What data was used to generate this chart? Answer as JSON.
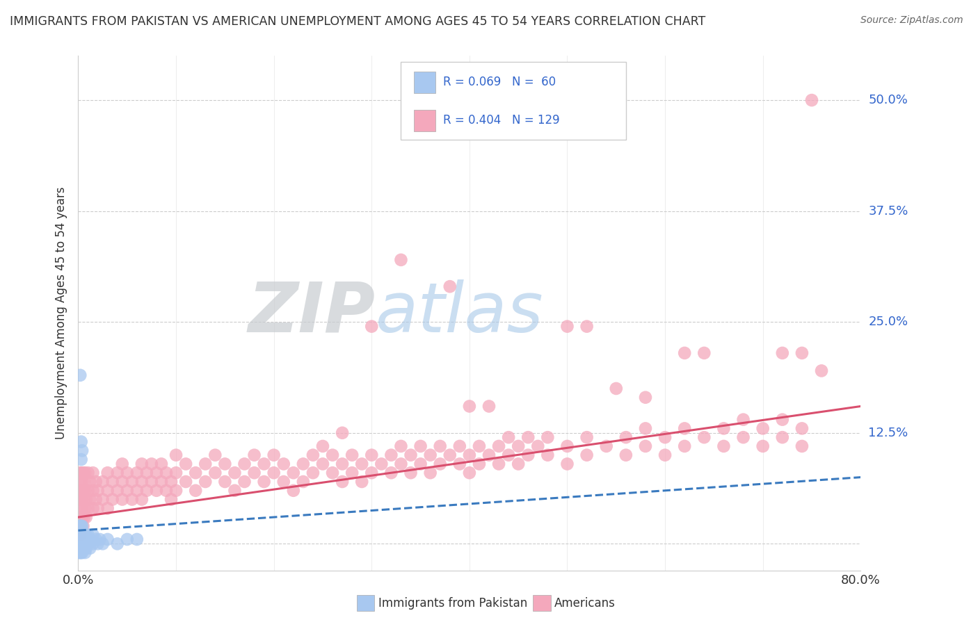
{
  "title": "IMMIGRANTS FROM PAKISTAN VS AMERICAN UNEMPLOYMENT AMONG AGES 45 TO 54 YEARS CORRELATION CHART",
  "source": "Source: ZipAtlas.com",
  "ylabel": "Unemployment Among Ages 45 to 54 years",
  "xlim": [
    0.0,
    0.8
  ],
  "ylim": [
    -0.03,
    0.55
  ],
  "xticks": [
    0.0,
    0.8
  ],
  "xticklabels": [
    "0.0%",
    "80.0%"
  ],
  "ytick_positions": [
    0.0,
    0.125,
    0.25,
    0.375,
    0.5
  ],
  "ytick_labels": [
    "",
    "12.5%",
    "25.0%",
    "37.5%",
    "50.0%"
  ],
  "grid_color": "#cccccc",
  "bg_color": "#ffffff",
  "blue_color": "#a8c8f0",
  "pink_color": "#f4a8bc",
  "blue_line_color": "#3a7abf",
  "pink_line_color": "#d94f6e",
  "blue_scatter": [
    [
      0.001,
      0.0
    ],
    [
      0.001,
      0.005
    ],
    [
      0.001,
      0.01
    ],
    [
      0.001,
      0.015
    ],
    [
      0.001,
      0.02
    ],
    [
      0.001,
      -0.005
    ],
    [
      0.001,
      -0.01
    ],
    [
      0.002,
      0.0
    ],
    [
      0.002,
      0.005
    ],
    [
      0.002,
      0.01
    ],
    [
      0.002,
      -0.005
    ],
    [
      0.002,
      0.015
    ],
    [
      0.002,
      -0.01
    ],
    [
      0.002,
      0.02
    ],
    [
      0.003,
      0.0
    ],
    [
      0.003,
      0.005
    ],
    [
      0.003,
      0.01
    ],
    [
      0.003,
      -0.005
    ],
    [
      0.003,
      -0.01
    ],
    [
      0.003,
      0.015
    ],
    [
      0.003,
      0.02
    ],
    [
      0.004,
      0.0
    ],
    [
      0.004,
      0.005
    ],
    [
      0.004,
      0.01
    ],
    [
      0.004,
      -0.005
    ],
    [
      0.004,
      0.015
    ],
    [
      0.004,
      -0.01
    ],
    [
      0.004,
      0.02
    ],
    [
      0.005,
      0.0
    ],
    [
      0.005,
      0.005
    ],
    [
      0.005,
      0.01
    ],
    [
      0.005,
      -0.005
    ],
    [
      0.006,
      0.0
    ],
    [
      0.006,
      0.005
    ],
    [
      0.006,
      -0.005
    ],
    [
      0.006,
      0.01
    ],
    [
      0.007,
      0.0
    ],
    [
      0.007,
      0.01
    ],
    [
      0.007,
      -0.01
    ],
    [
      0.008,
      0.005
    ],
    [
      0.008,
      0.01
    ],
    [
      0.008,
      -0.005
    ],
    [
      0.009,
      0.0
    ],
    [
      0.01,
      0.0
    ],
    [
      0.01,
      0.01
    ],
    [
      0.012,
      0.005
    ],
    [
      0.012,
      -0.005
    ],
    [
      0.015,
      0.0
    ],
    [
      0.015,
      0.01
    ],
    [
      0.018,
      0.005
    ],
    [
      0.02,
      0.0
    ],
    [
      0.022,
      0.005
    ],
    [
      0.025,
      0.0
    ],
    [
      0.03,
      0.005
    ],
    [
      0.04,
      0.0
    ],
    [
      0.05,
      0.005
    ],
    [
      0.06,
      0.005
    ],
    [
      0.002,
      0.19
    ],
    [
      0.003,
      0.115
    ],
    [
      0.003,
      0.095
    ],
    [
      0.004,
      0.105
    ]
  ],
  "pink_scatter": [
    [
      0.001,
      0.06
    ],
    [
      0.001,
      0.04
    ],
    [
      0.001,
      0.02
    ],
    [
      0.001,
      0.08
    ],
    [
      0.002,
      0.05
    ],
    [
      0.002,
      0.03
    ],
    [
      0.002,
      0.07
    ],
    [
      0.002,
      0.01
    ],
    [
      0.003,
      0.06
    ],
    [
      0.003,
      0.04
    ],
    [
      0.003,
      0.08
    ],
    [
      0.004,
      0.05
    ],
    [
      0.004,
      0.03
    ],
    [
      0.004,
      0.07
    ],
    [
      0.005,
      0.06
    ],
    [
      0.005,
      0.02
    ],
    [
      0.005,
      0.08
    ],
    [
      0.006,
      0.05
    ],
    [
      0.006,
      0.03
    ],
    [
      0.006,
      0.07
    ],
    [
      0.007,
      0.06
    ],
    [
      0.007,
      0.04
    ],
    [
      0.007,
      0.08
    ],
    [
      0.008,
      0.05
    ],
    [
      0.008,
      0.03
    ],
    [
      0.01,
      0.06
    ],
    [
      0.01,
      0.04
    ],
    [
      0.01,
      0.08
    ],
    [
      0.012,
      0.05
    ],
    [
      0.012,
      0.07
    ],
    [
      0.015,
      0.06
    ],
    [
      0.015,
      0.04
    ],
    [
      0.015,
      0.08
    ],
    [
      0.018,
      0.05
    ],
    [
      0.018,
      0.07
    ],
    [
      0.02,
      0.06
    ],
    [
      0.02,
      0.04
    ],
    [
      0.025,
      0.07
    ],
    [
      0.025,
      0.05
    ],
    [
      0.03,
      0.06
    ],
    [
      0.03,
      0.08
    ],
    [
      0.03,
      0.04
    ],
    [
      0.035,
      0.07
    ],
    [
      0.035,
      0.05
    ],
    [
      0.04,
      0.08
    ],
    [
      0.04,
      0.06
    ],
    [
      0.045,
      0.07
    ],
    [
      0.045,
      0.05
    ],
    [
      0.045,
      0.09
    ],
    [
      0.05,
      0.08
    ],
    [
      0.05,
      0.06
    ],
    [
      0.055,
      0.07
    ],
    [
      0.055,
      0.05
    ],
    [
      0.06,
      0.08
    ],
    [
      0.06,
      0.06
    ],
    [
      0.065,
      0.07
    ],
    [
      0.065,
      0.05
    ],
    [
      0.065,
      0.09
    ],
    [
      0.07,
      0.08
    ],
    [
      0.07,
      0.06
    ],
    [
      0.075,
      0.07
    ],
    [
      0.075,
      0.09
    ],
    [
      0.08,
      0.08
    ],
    [
      0.08,
      0.06
    ],
    [
      0.085,
      0.07
    ],
    [
      0.085,
      0.09
    ],
    [
      0.09,
      0.08
    ],
    [
      0.09,
      0.06
    ],
    [
      0.095,
      0.07
    ],
    [
      0.095,
      0.05
    ],
    [
      0.1,
      0.08
    ],
    [
      0.1,
      0.06
    ],
    [
      0.1,
      0.1
    ],
    [
      0.11,
      0.07
    ],
    [
      0.11,
      0.09
    ],
    [
      0.12,
      0.08
    ],
    [
      0.12,
      0.06
    ],
    [
      0.13,
      0.07
    ],
    [
      0.13,
      0.09
    ],
    [
      0.14,
      0.08
    ],
    [
      0.14,
      0.1
    ],
    [
      0.15,
      0.07
    ],
    [
      0.15,
      0.09
    ],
    [
      0.16,
      0.08
    ],
    [
      0.16,
      0.06
    ],
    [
      0.17,
      0.09
    ],
    [
      0.17,
      0.07
    ],
    [
      0.18,
      0.08
    ],
    [
      0.18,
      0.1
    ],
    [
      0.19,
      0.09
    ],
    [
      0.19,
      0.07
    ],
    [
      0.2,
      0.08
    ],
    [
      0.2,
      0.1
    ],
    [
      0.21,
      0.09
    ],
    [
      0.21,
      0.07
    ],
    [
      0.22,
      0.08
    ],
    [
      0.22,
      0.06
    ],
    [
      0.23,
      0.09
    ],
    [
      0.23,
      0.07
    ],
    [
      0.24,
      0.08
    ],
    [
      0.24,
      0.1
    ],
    [
      0.25,
      0.09
    ],
    [
      0.25,
      0.11
    ],
    [
      0.26,
      0.1
    ],
    [
      0.26,
      0.08
    ],
    [
      0.27,
      0.09
    ],
    [
      0.27,
      0.07
    ],
    [
      0.28,
      0.08
    ],
    [
      0.28,
      0.1
    ],
    [
      0.29,
      0.09
    ],
    [
      0.29,
      0.07
    ],
    [
      0.3,
      0.08
    ],
    [
      0.3,
      0.1
    ],
    [
      0.31,
      0.09
    ],
    [
      0.32,
      0.1
    ],
    [
      0.32,
      0.08
    ],
    [
      0.33,
      0.09
    ],
    [
      0.33,
      0.11
    ],
    [
      0.34,
      0.1
    ],
    [
      0.34,
      0.08
    ],
    [
      0.35,
      0.09
    ],
    [
      0.35,
      0.11
    ],
    [
      0.36,
      0.1
    ],
    [
      0.36,
      0.08
    ],
    [
      0.37,
      0.09
    ],
    [
      0.37,
      0.11
    ],
    [
      0.38,
      0.1
    ],
    [
      0.39,
      0.09
    ],
    [
      0.39,
      0.11
    ],
    [
      0.4,
      0.1
    ],
    [
      0.4,
      0.08
    ],
    [
      0.41,
      0.09
    ],
    [
      0.41,
      0.11
    ],
    [
      0.42,
      0.1
    ],
    [
      0.43,
      0.09
    ],
    [
      0.43,
      0.11
    ],
    [
      0.44,
      0.1
    ],
    [
      0.44,
      0.12
    ],
    [
      0.45,
      0.11
    ],
    [
      0.45,
      0.09
    ],
    [
      0.46,
      0.1
    ],
    [
      0.46,
      0.12
    ],
    [
      0.47,
      0.11
    ],
    [
      0.48,
      0.1
    ],
    [
      0.48,
      0.12
    ],
    [
      0.5,
      0.11
    ],
    [
      0.5,
      0.09
    ],
    [
      0.52,
      0.1
    ],
    [
      0.52,
      0.12
    ],
    [
      0.54,
      0.11
    ],
    [
      0.56,
      0.12
    ],
    [
      0.56,
      0.1
    ],
    [
      0.58,
      0.11
    ],
    [
      0.58,
      0.13
    ],
    [
      0.6,
      0.12
    ],
    [
      0.6,
      0.1
    ],
    [
      0.62,
      0.11
    ],
    [
      0.62,
      0.13
    ],
    [
      0.64,
      0.12
    ],
    [
      0.66,
      0.11
    ],
    [
      0.66,
      0.13
    ],
    [
      0.68,
      0.12
    ],
    [
      0.68,
      0.14
    ],
    [
      0.7,
      0.13
    ],
    [
      0.7,
      0.11
    ],
    [
      0.72,
      0.12
    ],
    [
      0.72,
      0.14
    ],
    [
      0.74,
      0.13
    ],
    [
      0.74,
      0.11
    ],
    [
      0.75,
      0.5
    ],
    [
      0.33,
      0.32
    ],
    [
      0.38,
      0.29
    ],
    [
      0.3,
      0.245
    ],
    [
      0.5,
      0.245
    ],
    [
      0.52,
      0.245
    ],
    [
      0.62,
      0.215
    ],
    [
      0.64,
      0.215
    ],
    [
      0.72,
      0.215
    ],
    [
      0.74,
      0.215
    ],
    [
      0.76,
      0.195
    ],
    [
      0.55,
      0.175
    ],
    [
      0.58,
      0.165
    ],
    [
      0.4,
      0.155
    ],
    [
      0.42,
      0.155
    ],
    [
      0.27,
      0.125
    ]
  ],
  "blue_trend_x": [
    0.0,
    0.8
  ],
  "blue_trend_y": [
    0.015,
    0.075
  ],
  "pink_trend_x": [
    0.0,
    0.8
  ],
  "pink_trend_y": [
    0.03,
    0.155
  ]
}
